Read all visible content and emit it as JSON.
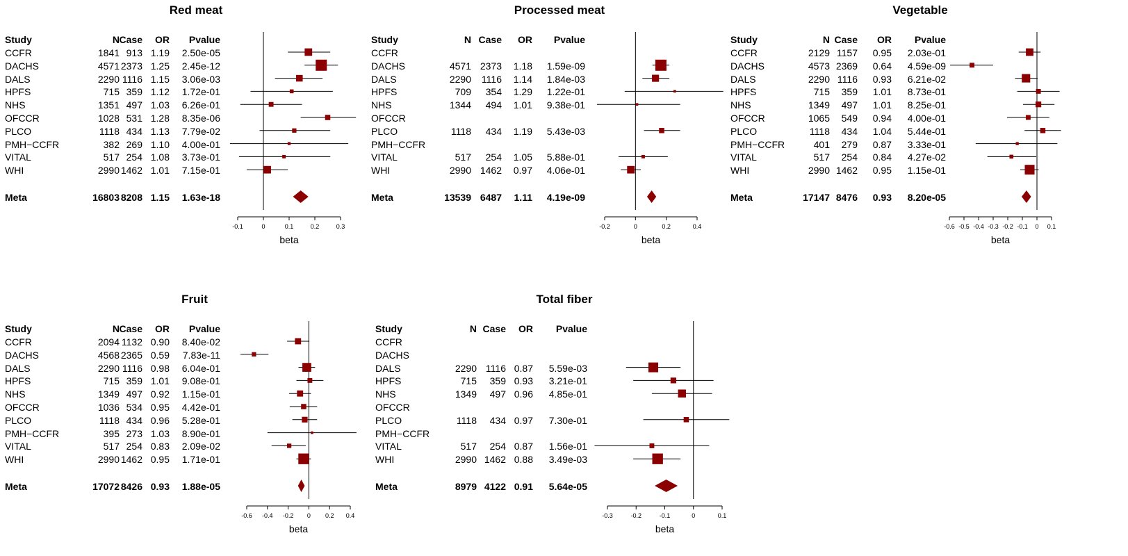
{
  "chart_data": [
    {
      "type": "forest",
      "title": "Red meat",
      "columns": [
        "Study",
        "N",
        "Case",
        "OR",
        "Pvalue"
      ],
      "xlabel": "beta",
      "xlim": [
        -0.1,
        0.3
      ],
      "xticks": [
        "-0.1",
        "0",
        "0.1",
        "0.2",
        "0.3"
      ],
      "xtick_values": [
        -0.1,
        0,
        0.1,
        0.2,
        0.3
      ],
      "rows": [
        {
          "study": "CCFR",
          "N": "1841",
          "case": "913",
          "or": "1.19",
          "p": "2.50e-05",
          "beta": 0.175,
          "lo": 0.095,
          "hi": 0.26,
          "w": 0.6
        },
        {
          "study": "DACHS",
          "N": "4571",
          "case": "2373",
          "or": "1.25",
          "p": "2.45e-12",
          "beta": 0.225,
          "lo": 0.16,
          "hi": 0.29,
          "w": 1.0
        },
        {
          "study": "DALS",
          "N": "2290",
          "case": "1116",
          "or": "1.15",
          "p": "3.06e-03",
          "beta": 0.14,
          "lo": 0.045,
          "hi": 0.23,
          "w": 0.5
        },
        {
          "study": "HPFS",
          "N": "715",
          "case": "359",
          "or": "1.12",
          "p": "1.72e-01",
          "beta": 0.11,
          "lo": -0.05,
          "hi": 0.27,
          "w": 0.2
        },
        {
          "study": "NHS",
          "N": "1351",
          "case": "497",
          "or": "1.03",
          "p": "6.26e-01",
          "beta": 0.03,
          "lo": -0.09,
          "hi": 0.15,
          "w": 0.3
        },
        {
          "study": "OFCCR",
          "N": "1028",
          "case": "531",
          "or": "1.28",
          "p": "8.35e-06",
          "beta": 0.25,
          "lo": 0.145,
          "hi": 0.36,
          "w": 0.35
        },
        {
          "study": "PLCO",
          "N": "1118",
          "case": "434",
          "or": "1.13",
          "p": "7.79e-02",
          "beta": 0.12,
          "lo": -0.015,
          "hi": 0.26,
          "w": 0.25
        },
        {
          "study": "PMH−CCFR",
          "N": "382",
          "case": "269",
          "or": "1.10",
          "p": "4.00e-01",
          "beta": 0.1,
          "lo": -0.13,
          "hi": 0.33,
          "w": 0.1
        },
        {
          "study": "VITAL",
          "N": "517",
          "case": "254",
          "or": "1.08",
          "p": "3.73e-01",
          "beta": 0.08,
          "lo": -0.095,
          "hi": 0.26,
          "w": 0.15
        },
        {
          "study": "WHI",
          "N": "2990",
          "case": "1462",
          "or": "1.01",
          "p": "7.15e-01",
          "beta": 0.015,
          "lo": -0.065,
          "hi": 0.095,
          "w": 0.6
        }
      ],
      "meta": {
        "study": "Meta",
        "N": "16803",
        "case": "8208",
        "or": "1.15",
        "p": "1.63e-18",
        "beta": 0.145,
        "lo": 0.115,
        "hi": 0.175
      }
    },
    {
      "type": "forest",
      "title": "Processed meat",
      "columns": [
        "Study",
        "N",
        "Case",
        "OR",
        "Pvalue"
      ],
      "xlabel": "beta",
      "xlim": [
        -0.2,
        0.4
      ],
      "xticks": [
        "-0.2",
        "0",
        "0.2",
        "0.4"
      ],
      "xtick_values": [
        -0.2,
        0,
        0.2,
        0.4
      ],
      "rows": [
        {
          "study": "CCFR",
          "N": "",
          "case": "",
          "or": "",
          "p": "",
          "beta": null
        },
        {
          "study": "DACHS",
          "N": "4571",
          "case": "2373",
          "or": "1.18",
          "p": "1.59e-09",
          "beta": 0.165,
          "lo": 0.11,
          "hi": 0.22,
          "w": 1.0
        },
        {
          "study": "DALS",
          "N": "2290",
          "case": "1116",
          "or": "1.14",
          "p": "1.84e-03",
          "beta": 0.13,
          "lo": 0.045,
          "hi": 0.22,
          "w": 0.55
        },
        {
          "study": "HPFS",
          "N": "709",
          "case": "354",
          "or": "1.29",
          "p": "1.22e-01",
          "beta": 0.255,
          "lo": -0.07,
          "hi": 0.57,
          "w": 0.05
        },
        {
          "study": "NHS",
          "N": "1344",
          "case": "494",
          "or": "1.01",
          "p": "9.38e-01",
          "beta": 0.01,
          "lo": -0.25,
          "hi": 0.29,
          "w": 0.05
        },
        {
          "study": "OFCCR",
          "N": "",
          "case": "",
          "or": "",
          "p": "",
          "beta": null
        },
        {
          "study": "PLCO",
          "N": "1118",
          "case": "434",
          "or": "1.19",
          "p": "5.43e-03",
          "beta": 0.17,
          "lo": 0.055,
          "hi": 0.29,
          "w": 0.35
        },
        {
          "study": "PMH−CCFR",
          "N": "",
          "case": "",
          "or": "",
          "p": "",
          "beta": null
        },
        {
          "study": "VITAL",
          "N": "517",
          "case": "254",
          "or": "1.05",
          "p": "5.88e-01",
          "beta": 0.05,
          "lo": -0.11,
          "hi": 0.21,
          "w": 0.15
        },
        {
          "study": "WHI",
          "N": "2990",
          "case": "1462",
          "or": "0.97",
          "p": "4.06e-01",
          "beta": -0.03,
          "lo": -0.095,
          "hi": 0.035,
          "w": 0.6
        }
      ],
      "meta": {
        "study": "Meta",
        "N": "13539",
        "case": "6487",
        "or": "1.11",
        "p": "4.19e-09",
        "beta": 0.105,
        "lo": 0.075,
        "hi": 0.135
      }
    },
    {
      "type": "forest",
      "title": "Vegetable",
      "columns": [
        "Study",
        "N",
        "Case",
        "OR",
        "Pvalue"
      ],
      "xlabel": "beta",
      "xlim": [
        -0.6,
        0.1
      ],
      "xticks": [
        "-0.6",
        "-0.5",
        "-0.4",
        "-0.3",
        "-0.2",
        "-0.1",
        "0",
        "0.1"
      ],
      "xtick_values": [
        -0.6,
        -0.5,
        -0.4,
        -0.3,
        -0.2,
        -0.1,
        0,
        0.1
      ],
      "rows": [
        {
          "study": "CCFR",
          "N": "2129",
          "case": "1157",
          "or": "0.95",
          "p": "2.03e-01",
          "beta": -0.05,
          "lo": -0.125,
          "hi": 0.025,
          "w": 0.6
        },
        {
          "study": "DACHS",
          "N": "4573",
          "case": "2369",
          "or": "0.64",
          "p": "4.59e-09",
          "beta": -0.445,
          "lo": -0.595,
          "hi": -0.3,
          "w": 0.3
        },
        {
          "study": "DALS",
          "N": "2290",
          "case": "1116",
          "or": "0.93",
          "p": "6.21e-02",
          "beta": -0.075,
          "lo": -0.15,
          "hi": 0.005,
          "w": 0.7
        },
        {
          "study": "HPFS",
          "N": "715",
          "case": "359",
          "or": "1.01",
          "p": "8.73e-01",
          "beta": 0.01,
          "lo": -0.135,
          "hi": 0.155,
          "w": 0.3
        },
        {
          "study": "NHS",
          "N": "1349",
          "case": "497",
          "or": "1.01",
          "p": "8.25e-01",
          "beta": 0.01,
          "lo": -0.095,
          "hi": 0.12,
          "w": 0.4
        },
        {
          "study": "OFCCR",
          "N": "1065",
          "case": "549",
          "or": "0.94",
          "p": "4.00e-01",
          "beta": -0.06,
          "lo": -0.205,
          "hi": 0.085,
          "w": 0.3
        },
        {
          "study": "PLCO",
          "N": "1118",
          "case": "434",
          "or": "1.04",
          "p": "5.44e-01",
          "beta": 0.04,
          "lo": -0.085,
          "hi": 0.165,
          "w": 0.35
        },
        {
          "study": "PMH−CCFR",
          "N": "401",
          "case": "279",
          "or": "0.87",
          "p": "3.33e-01",
          "beta": -0.135,
          "lo": -0.42,
          "hi": 0.14,
          "w": 0.1
        },
        {
          "study": "VITAL",
          "N": "517",
          "case": "254",
          "or": "0.84",
          "p": "4.27e-02",
          "beta": -0.175,
          "lo": -0.34,
          "hi": -0.005,
          "w": 0.2
        },
        {
          "study": "WHI",
          "N": "2990",
          "case": "1462",
          "or": "0.95",
          "p": "1.15e-01",
          "beta": -0.05,
          "lo": -0.115,
          "hi": 0.012,
          "w": 0.85
        }
      ],
      "meta": {
        "study": "Meta",
        "N": "17147",
        "case": "8476",
        "or": "0.93",
        "p": "8.20e-05",
        "beta": -0.072,
        "lo": -0.105,
        "hi": -0.04
      }
    },
    {
      "type": "forest",
      "title": "Fruit",
      "columns": [
        "Study",
        "N",
        "Case",
        "OR",
        "Pvalue"
      ],
      "xlabel": "beta",
      "xlim": [
        -0.6,
        0.4
      ],
      "xticks": [
        "-0.6",
        "-0.4",
        "-0.2",
        "0",
        "0.2",
        "0.4"
      ],
      "xtick_values": [
        -0.6,
        -0.4,
        -0.2,
        0,
        0.2,
        0.4
      ],
      "rows": [
        {
          "study": "CCFR",
          "N": "2094",
          "case": "1132",
          "or": "0.90",
          "p": "8.40e-02",
          "beta": -0.105,
          "lo": -0.21,
          "hi": 0.005,
          "w": 0.45
        },
        {
          "study": "DACHS",
          "N": "4568",
          "case": "2365",
          "or": "0.59",
          "p": "7.83e-11",
          "beta": -0.53,
          "lo": -0.66,
          "hi": -0.39,
          "w": 0.25
        },
        {
          "study": "DALS",
          "N": "2290",
          "case": "1116",
          "or": "0.98",
          "p": "6.04e-01",
          "beta": -0.02,
          "lo": -0.1,
          "hi": 0.06,
          "w": 0.75
        },
        {
          "study": "HPFS",
          "N": "715",
          "case": "359",
          "or": "1.01",
          "p": "9.08e-01",
          "beta": 0.01,
          "lo": -0.12,
          "hi": 0.14,
          "w": 0.3
        },
        {
          "study": "NHS",
          "N": "1349",
          "case": "497",
          "or": "0.92",
          "p": "1.15e-01",
          "beta": -0.085,
          "lo": -0.19,
          "hi": 0.02,
          "w": 0.45
        },
        {
          "study": "OFCCR",
          "N": "1036",
          "case": "534",
          "or": "0.95",
          "p": "4.42e-01",
          "beta": -0.05,
          "lo": -0.185,
          "hi": 0.08,
          "w": 0.35
        },
        {
          "study": "PLCO",
          "N": "1118",
          "case": "434",
          "or": "0.96",
          "p": "5.28e-01",
          "beta": -0.04,
          "lo": -0.16,
          "hi": 0.08,
          "w": 0.4
        },
        {
          "study": "PMH−CCFR",
          "N": "395",
          "case": "273",
          "or": "1.03",
          "p": "8.90e-01",
          "beta": 0.03,
          "lo": -0.4,
          "hi": 0.46,
          "w": 0.05
        },
        {
          "study": "VITAL",
          "N": "517",
          "case": "254",
          "or": "0.83",
          "p": "2.09e-02",
          "beta": -0.19,
          "lo": -0.36,
          "hi": -0.03,
          "w": 0.25
        },
        {
          "study": "WHI",
          "N": "2990",
          "case": "1462",
          "or": "0.95",
          "p": "1.71e-01",
          "beta": -0.05,
          "lo": -0.12,
          "hi": 0.02,
          "w": 0.95
        }
      ],
      "meta": {
        "study": "Meta",
        "N": "17072",
        "case": "8426",
        "or": "0.93",
        "p": "1.88e-05",
        "beta": -0.073,
        "lo": -0.105,
        "hi": -0.04
      }
    },
    {
      "type": "forest",
      "title": "Total fiber",
      "columns": [
        "Study",
        "N",
        "Case",
        "OR",
        "Pvalue"
      ],
      "xlabel": "beta",
      "xlim": [
        -0.3,
        0.1
      ],
      "xticks": [
        "-0.3",
        "-0.2",
        "-0.1",
        "0",
        "0.1"
      ],
      "xtick_values": [
        -0.3,
        -0.2,
        -0.1,
        0,
        0.1
      ],
      "rows": [
        {
          "study": "CCFR",
          "N": "",
          "case": "",
          "or": "",
          "p": "",
          "beta": null
        },
        {
          "study": "DACHS",
          "N": "",
          "case": "",
          "or": "",
          "p": "",
          "beta": null
        },
        {
          "study": "DALS",
          "N": "2290",
          "case": "1116",
          "or": "0.87",
          "p": "5.59e-03",
          "beta": -0.14,
          "lo": -0.235,
          "hi": -0.045,
          "w": 0.85
        },
        {
          "study": "HPFS",
          "N": "715",
          "case": "359",
          "or": "0.93",
          "p": "3.21e-01",
          "beta": -0.07,
          "lo": -0.21,
          "hi": 0.07,
          "w": 0.4
        },
        {
          "study": "NHS",
          "N": "1349",
          "case": "497",
          "or": "0.96",
          "p": "4.85e-01",
          "beta": -0.04,
          "lo": -0.145,
          "hi": 0.065,
          "w": 0.65
        },
        {
          "study": "OFCCR",
          "N": "",
          "case": "",
          "or": "",
          "p": "",
          "beta": null
        },
        {
          "study": "PLCO",
          "N": "1118",
          "case": "434",
          "or": "0.97",
          "p": "7.30e-01",
          "beta": -0.025,
          "lo": -0.175,
          "hi": 0.125,
          "w": 0.35
        },
        {
          "study": "PMH−CCFR",
          "N": "",
          "case": "",
          "or": "",
          "p": "",
          "beta": null
        },
        {
          "study": "VITAL",
          "N": "517",
          "case": "254",
          "or": "0.87",
          "p": "1.56e-01",
          "beta": -0.145,
          "lo": -0.345,
          "hi": 0.055,
          "w": 0.3
        },
        {
          "study": "WHI",
          "N": "2990",
          "case": "1462",
          "or": "0.88",
          "p": "3.49e-03",
          "beta": -0.125,
          "lo": -0.21,
          "hi": -0.045,
          "w": 0.95
        }
      ],
      "meta": {
        "study": "Meta",
        "N": "8979",
        "case": "4122",
        "or": "0.91",
        "p": "5.64e-05",
        "beta": -0.095,
        "lo": -0.135,
        "hi": -0.055
      }
    }
  ],
  "colors": {
    "marker": "#8b0000",
    "line": "#000000"
  }
}
